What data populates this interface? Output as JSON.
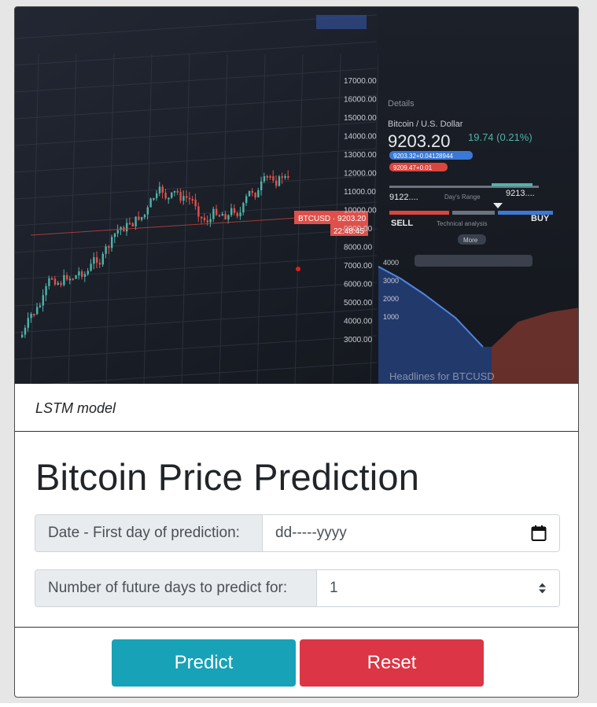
{
  "hero": {
    "price_pair": "Bitcoin / U.S. Dollar",
    "price": "9203.20",
    "change": "19.74 (0.21%)",
    "buy_price": "9203.32+0.04128944",
    "sell_price": "9209.47+0.01",
    "ticker": "BTCUSD",
    "ticker_price": "9203.20",
    "countdown": "22:48:45",
    "days_range_low": "9122....",
    "days_range_label": "Day's Range",
    "days_range_high": "9213....",
    "sell_label": "SELL",
    "technical_label": "Technical analysis",
    "buy_label": "BUY",
    "more_label": "More",
    "details_label": "Details",
    "axis_ticks": [
      "17000.00",
      "16000.00",
      "15000.00",
      "14000.00",
      "13000.00",
      "12000.00",
      "11000.00",
      "10000.00",
      "9000.00",
      "8000.00",
      "7000.00",
      "6000.00",
      "5000.00",
      "4000.00",
      "3000.00"
    ],
    "lower_ticks": [
      "4000",
      "3000",
      "2000",
      "1000"
    ],
    "headline": "Headlines for BTCUSD"
  },
  "card": {
    "header": "LSTM model",
    "title": "Bitcoin Price Prediction"
  },
  "form": {
    "date_label": "Date - First day of prediction:",
    "date_placeholder": "dd-----yyyy",
    "days_label": "Number of future days to predict for:",
    "days_value": "1"
  },
  "buttons": {
    "predict": "Predict",
    "reset": "Reset"
  },
  "colors": {
    "predict": "#17a2b8",
    "reset": "#dc3545",
    "up_candle": "#4fb3a8",
    "down_candle": "#e0504a"
  }
}
